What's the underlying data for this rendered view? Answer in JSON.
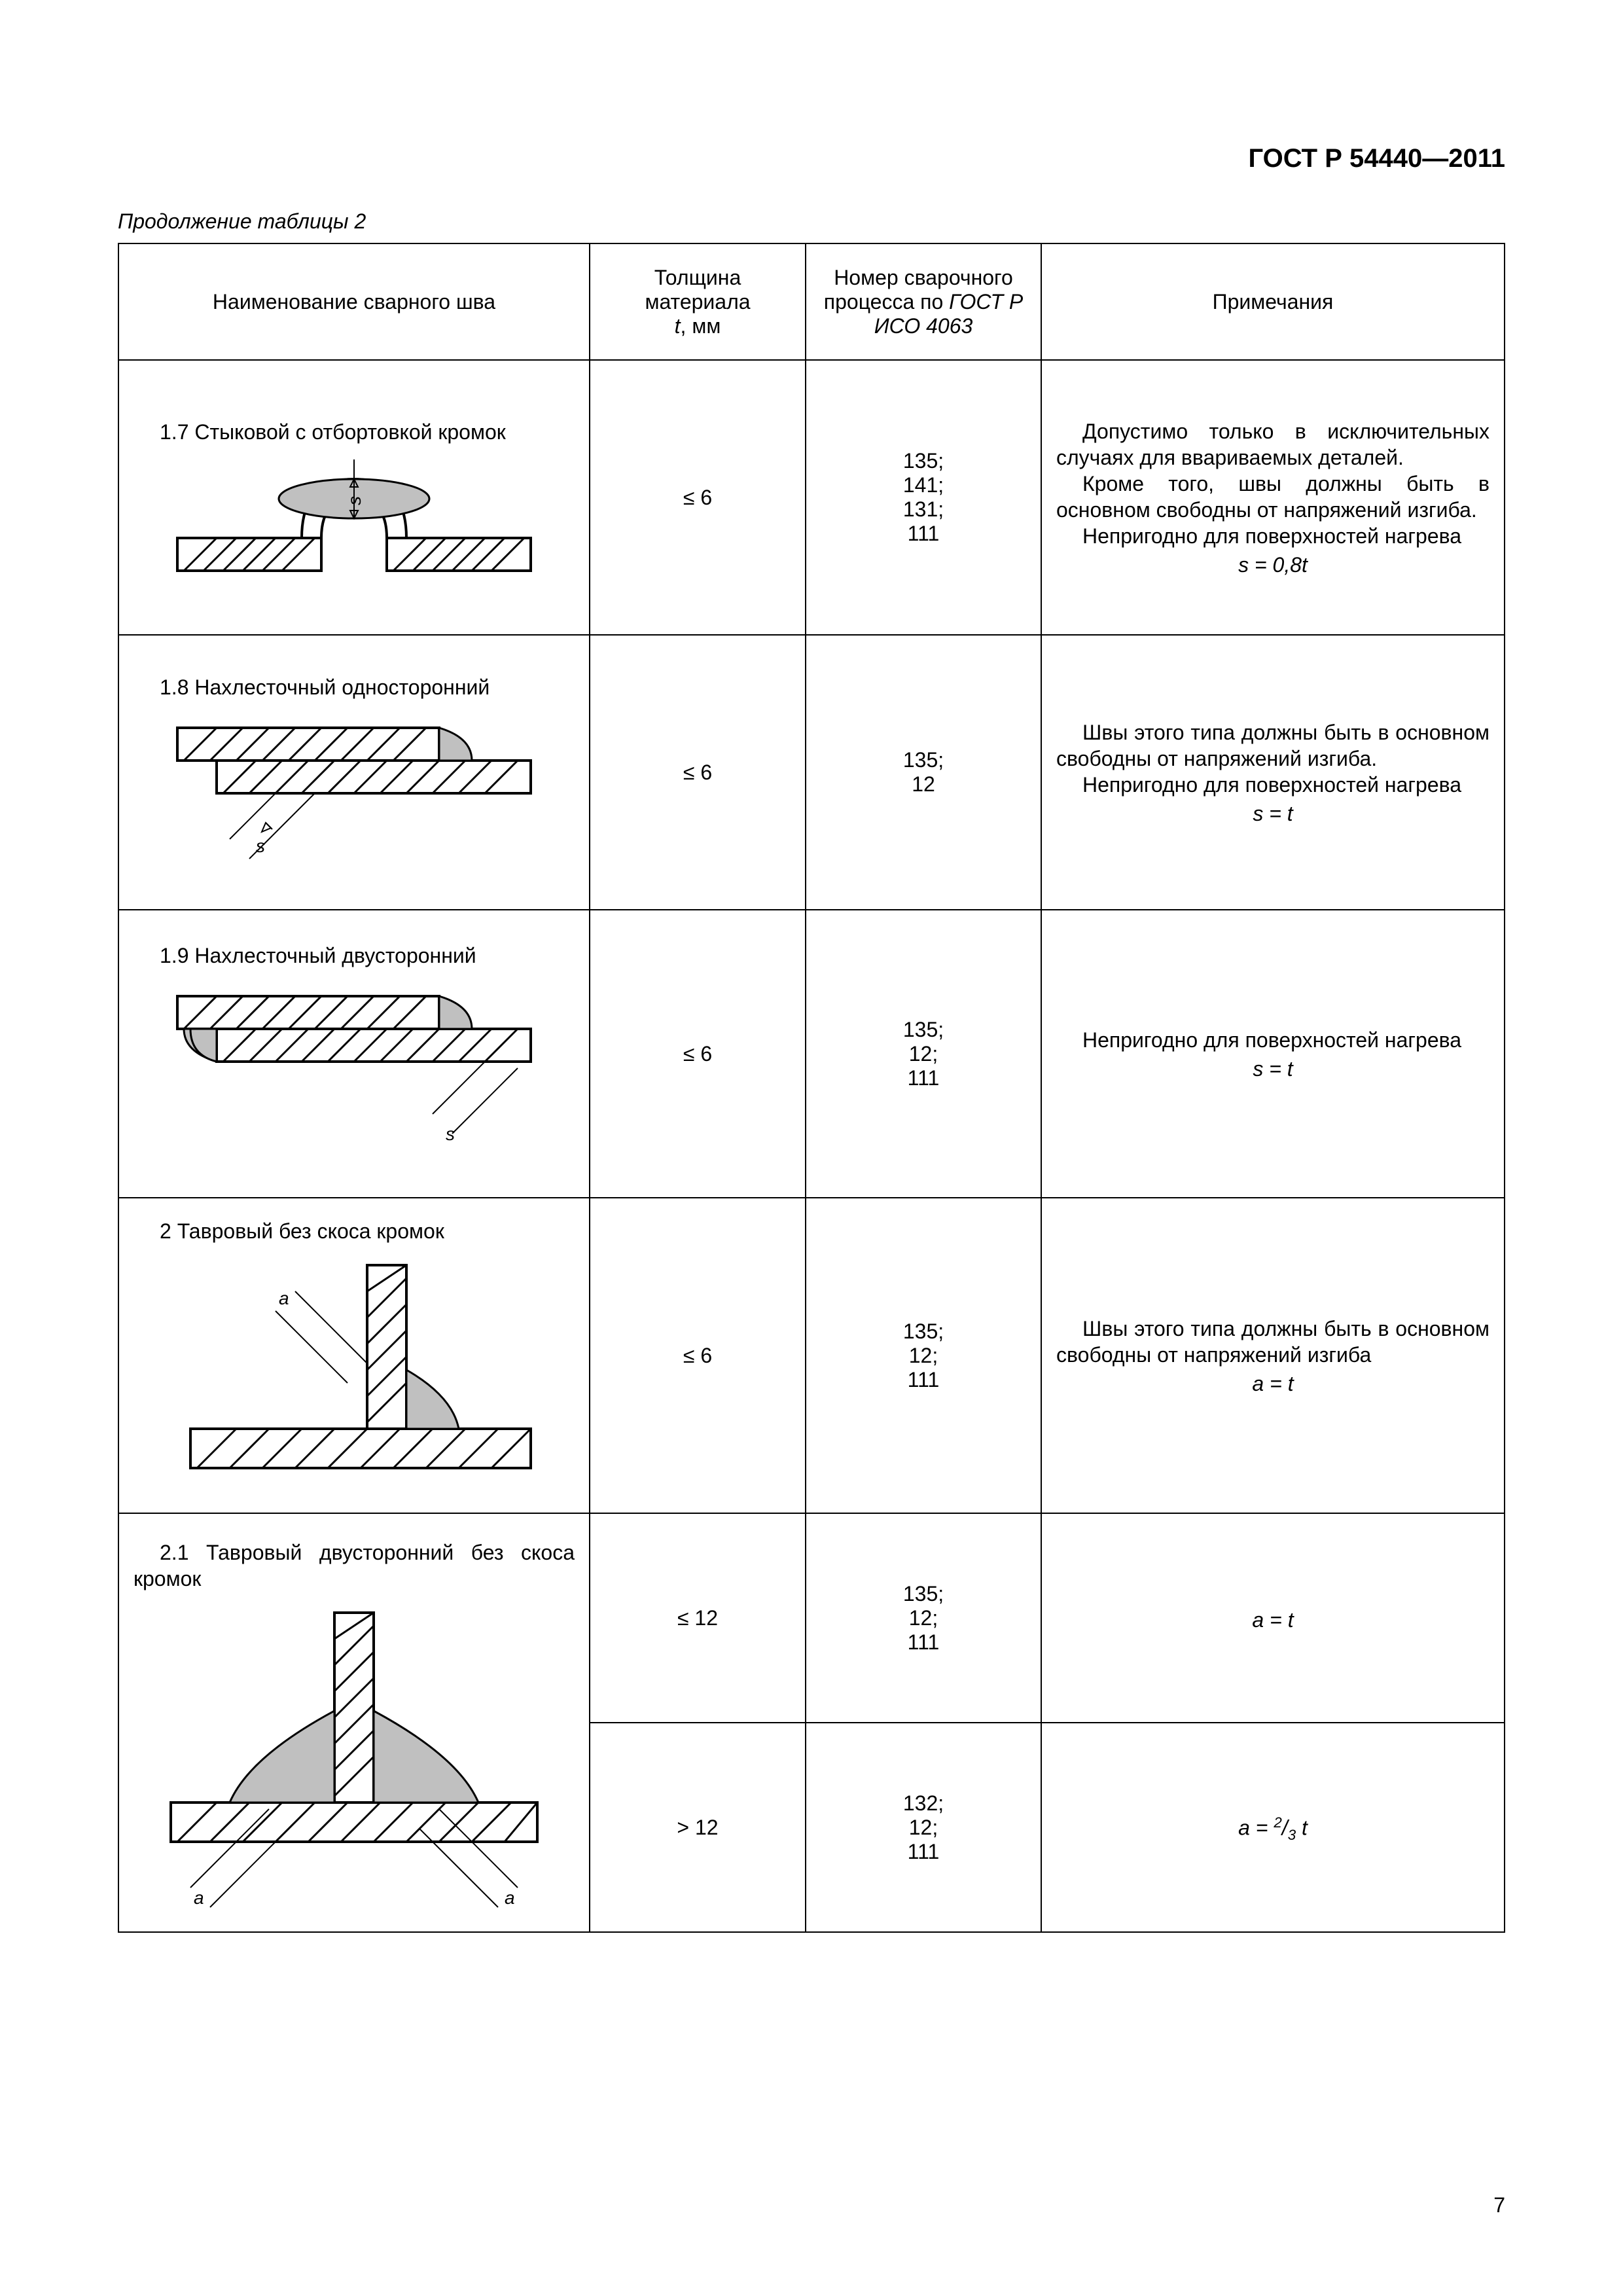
{
  "doc_header": "ГОСТ Р 54440—2011",
  "caption": "Продолжение таблицы 2",
  "page_number": "7",
  "headers": {
    "col1": "Наименование сварного шва",
    "col2_line1": "Толщина материала",
    "col2_line2_html": "<i>t</i>, мм",
    "col3_line1": "Номер сварочного",
    "col3_line2_html": "процесса по <i>ГОСТ Р</i>",
    "col3_line3_html": "<i>ИСО 4063</i>",
    "col4": "Примечания"
  },
  "rows": [
    {
      "name": "1.7 Стыковой с отбортовкой кромок",
      "thickness": "≤ 6",
      "process_lines": [
        "135;",
        "141;",
        "131;",
        "111"
      ],
      "notes": [
        "Допустимо только в исключительных случаях для ввариваемых деталей.",
        "Кроме того, швы должны быть в основном свободны от напряжений изгиба.",
        "Непригодно для поверхностей нагрева"
      ],
      "formula_html": "<i>s</i> = 0,8<i>t</i>",
      "svg": "flange"
    },
    {
      "name": "1.8 Нахлесточный односторонний",
      "thickness": "≤ 6",
      "process_lines": [
        "135;",
        "12"
      ],
      "notes": [
        "Швы этого типа должны быть в основном свободны от напряжений изгиба.",
        "Непригодно для поверхностей нагрева"
      ],
      "formula_html": "<i>s</i> = <i>t</i>",
      "svg": "lap1"
    },
    {
      "name": "1.9 Нахлесточный двусторонний",
      "thickness": "≤ 6",
      "process_lines": [
        "135;",
        "12;",
        "111"
      ],
      "notes": [
        "Непригодно для поверхностей нагрева"
      ],
      "formula_html": "<i>s</i> = <i>t</i>",
      "svg": "lap2"
    },
    {
      "name": "2 Тавровый без скоса кромок",
      "thickness": "≤ 6",
      "process_lines": [
        "135;",
        "12;",
        "111"
      ],
      "notes": [
        "Швы этого типа должны быть в основном свободны от напряжений изгиба"
      ],
      "formula_html": "<i>a</i> = <i>t</i>",
      "svg": "tee1"
    },
    {
      "name": "2.1 Тавровый двусторонний без скоса кромок",
      "thickness": "≤ 12",
      "process_lines": [
        "135;",
        "12;",
        "111"
      ],
      "notes": [],
      "formula_html": "<i>a</i> = <i>t</i>",
      "svg": "tee2",
      "rowspan_name": 2
    },
    {
      "thickness": "> 12",
      "process_lines": [
        "132;",
        "12;",
        "111"
      ],
      "notes": [],
      "formula_html": "<i>a</i> = <sup>2</sup>/<sub>3</sub> <i>t</i>"
    }
  ]
}
